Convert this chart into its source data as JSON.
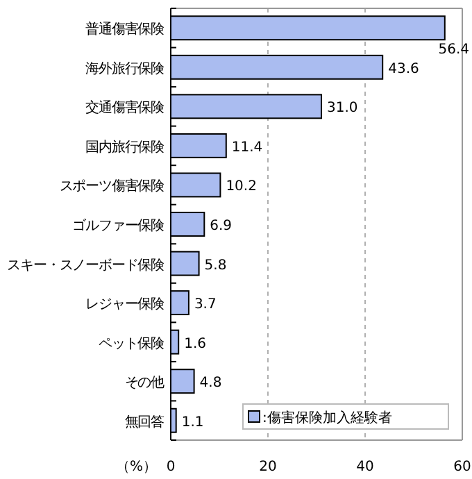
{
  "chart_data": {
    "type": "bar",
    "orientation": "horizontal",
    "xlabel": "（%）",
    "categories": [
      "普通傷害保険",
      "海外旅行保険",
      "交通傷害保険",
      "国内旅行保険",
      "スポーツ傷害保険",
      "ゴルファー保険",
      "スキー・スノーボード保険",
      "レジャー保険",
      "ペット保険",
      "その他",
      "無回答"
    ],
    "series": [
      {
        "name": ":傷害保険加入経験者",
        "color": "#aabcf0",
        "values": [
          56.4,
          43.6,
          31.0,
          11.4,
          10.2,
          6.9,
          5.8,
          3.7,
          1.6,
          4.8,
          1.1
        ]
      }
    ],
    "value_labels": [
      "56.4",
      "43.6",
      "31.0",
      "11.4",
      "10.2",
      "6.9",
      "5.8",
      "3.7",
      "1.6",
      "4.8",
      "1.1"
    ],
    "xlim": [
      0,
      60
    ],
    "xticks": [
      0,
      20,
      40,
      60
    ],
    "grid": "x",
    "legend": "bottom right"
  }
}
